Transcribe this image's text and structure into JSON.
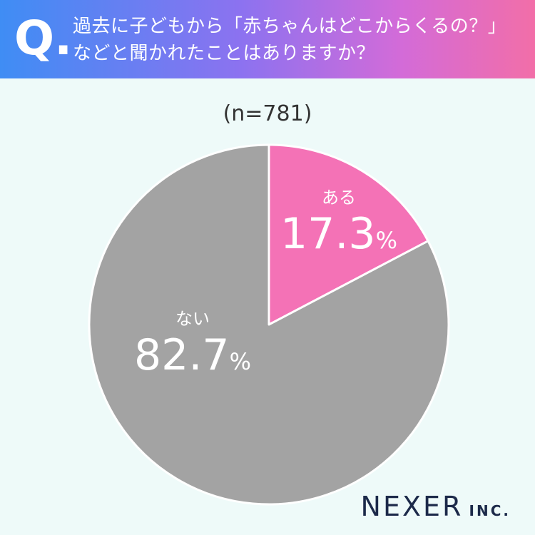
{
  "header": {
    "q_mark": "Q.",
    "question_lines": [
      "過去に子どもから「赤ちゃんはどこからくるの？」",
      "などと聞かれたことはありますか？"
    ]
  },
  "sample": "(n=781)",
  "chart_data": {
    "type": "pie",
    "slices": [
      {
        "label": "ある",
        "value": 17.3,
        "color": "#f472b6"
      },
      {
        "label": "ない",
        "value": 82.7,
        "color": "#a3a3a3"
      }
    ],
    "unit": "%",
    "start_angle_deg": 0,
    "direction": "clockwise"
  },
  "brand": {
    "name": "NEXER",
    "suffix": "INC."
  },
  "colors": {
    "background": "#eefaf9",
    "slice_border": "#ffffff",
    "text_light": "#ffffff"
  }
}
